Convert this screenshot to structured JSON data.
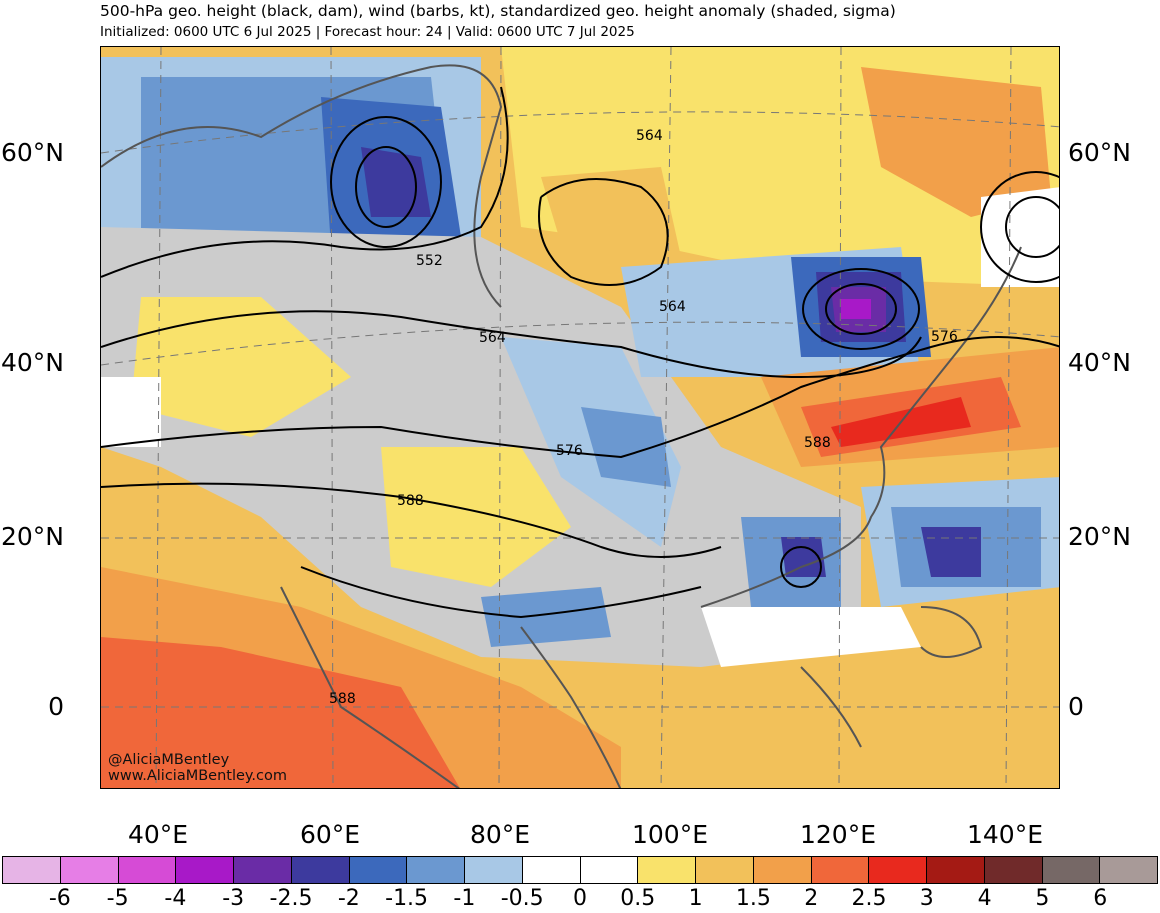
{
  "header": {
    "title": "500-hPa geo. height (black, dam), wind (barbs, kt), standardized geo. height anomaly (shaded, sigma)",
    "subtitle": "Initialized: 0600 UTC 6 Jul 2025 | Forecast hour: 24 | Valid: 0600 UTC 7 Jul 2025"
  },
  "axes": {
    "lat_labels": [
      "60°N",
      "40°N",
      "20°N",
      "0"
    ],
    "lon_labels": [
      "40°E",
      "60°E",
      "80°E",
      "100°E",
      "120°E",
      "140°E"
    ]
  },
  "contour_labels": [
    "564",
    "552",
    "564",
    "564",
    "576",
    "576",
    "588",
    "588",
    "588"
  ],
  "credits": {
    "handle": "@AliciaMBentley",
    "site": "www.AliciaMBentley.com"
  },
  "colorbar": {
    "ticks": [
      "-6",
      "-5",
      "-4",
      "-3",
      "-2.5",
      "-2",
      "-1.5",
      "-1",
      "-0.5",
      "0",
      "0.5",
      "1",
      "1.5",
      "2",
      "2.5",
      "3",
      "4",
      "5",
      "6"
    ],
    "colors": [
      "#e6b4e6",
      "#e67ee6",
      "#d64bd6",
      "#a819c8",
      "#6a2ca6",
      "#3d3a9e",
      "#3c69bc",
      "#6b98d0",
      "#a8c8e6",
      "#ffffff",
      "#ffffff",
      "#f9e26b",
      "#f2c15a",
      "#f2a04a",
      "#f0673a",
      "#e8291e",
      "#a41a14",
      "#702a2a",
      "#766866",
      "#a89a98"
    ]
  }
}
